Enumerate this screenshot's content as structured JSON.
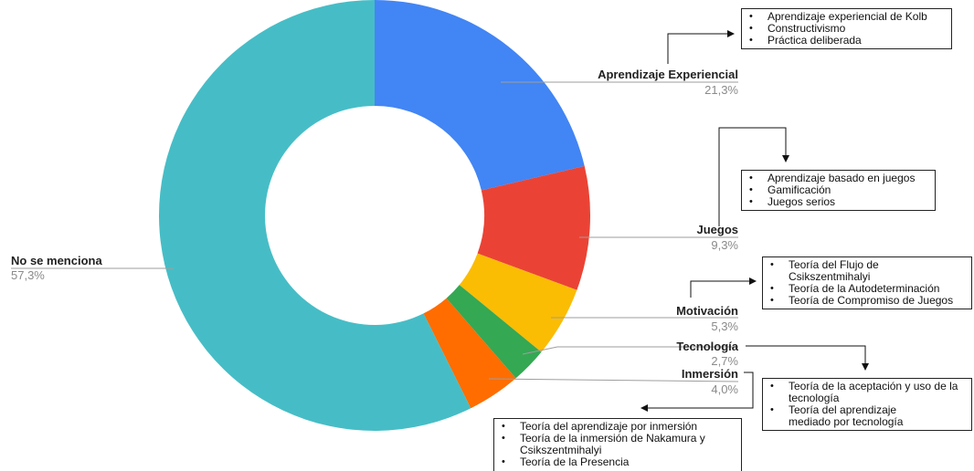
{
  "chart_data": {
    "type": "donut",
    "categories": [
      "Aprendizaje Experiencial",
      "Juegos",
      "Motivación",
      "Tecnología",
      "Inmersión",
      "No se menciona"
    ],
    "values": [
      21.3,
      9.3,
      5.3,
      2.7,
      4.0,
      57.3
    ],
    "value_labels": [
      "21,3%",
      "9,3%",
      "5,3%",
      "2,7%",
      "4,0%",
      "57,3%"
    ],
    "colors": [
      "#4285f4",
      "#ea4335",
      "#fbbc04",
      "#34a853",
      "#ff6d01",
      "#46bdc6"
    ],
    "title": ""
  },
  "theory_boxes": [
    {
      "category": "Aprendizaje Experiencial",
      "items": [
        "Aprendizaje experiencial de Kolb",
        "Constructivismo",
        "Práctica deliberada"
      ]
    },
    {
      "category": "Juegos",
      "items": [
        "Aprendizaje basado en juegos",
        "Gamificación",
        "Juegos serios"
      ]
    },
    {
      "category": "Motivación",
      "items": [
        "Teoría del Flujo de Csikszentmihalyi",
        "Teoría de la Autodeterminación",
        "Teoría de Compromiso de Juegos"
      ]
    },
    {
      "category": "Tecnología",
      "items": [
        "Teoría de la aceptación y uso de la tecnología",
        "Teoría del aprendizaje mediado por tecnología"
      ]
    },
    {
      "category": "Inmersión",
      "items": [
        "Teoría del aprendizaje por inmersión",
        "Teoría de la inmersión de Nakamura y Csikszentmihalyi",
        "Teoría de la Presencia"
      ]
    }
  ]
}
